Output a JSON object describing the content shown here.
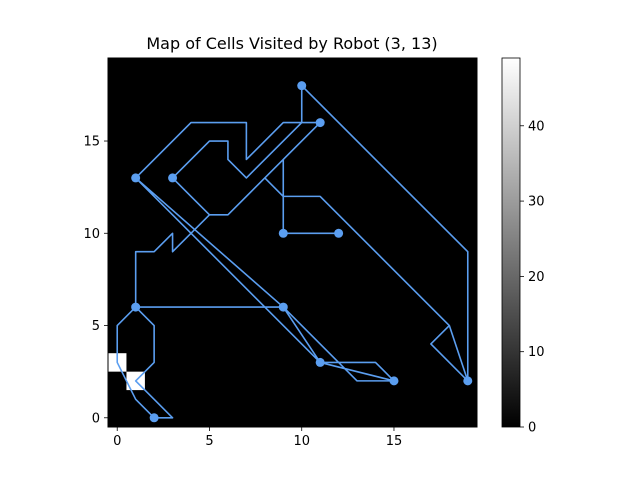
{
  "chart_data": {
    "type": "heatmap",
    "title": "Map of Cells Visited by Robot (3, 13)",
    "xlabel": "",
    "ylabel": "",
    "xlim": [
      -0.5,
      19.5
    ],
    "ylim": [
      -0.5,
      19.5
    ],
    "x_ticks": [
      0,
      5,
      10,
      15
    ],
    "y_ticks": [
      0,
      5,
      10,
      15
    ],
    "grid_size": [
      20,
      20
    ],
    "background_value": 0,
    "colormap": "gray",
    "colorbar": {
      "min": 0,
      "max": 49,
      "ticks": [
        0,
        10,
        20,
        30,
        40
      ]
    },
    "bright_cells": [
      {
        "x": 0,
        "y": 3,
        "value": 49
      },
      {
        "x": 1,
        "y": 2,
        "value": 49
      }
    ],
    "path_color": "#5b9ef0",
    "path": [
      [
        2,
        0
      ],
      [
        1,
        1
      ],
      [
        0,
        3
      ],
      [
        0,
        5
      ],
      [
        1,
        6
      ],
      [
        2,
        5
      ],
      [
        2,
        3
      ],
      [
        1,
        2
      ],
      [
        2,
        1
      ],
      [
        3,
        0
      ],
      [
        2,
        0
      ],
      [
        1,
        1
      ],
      [
        0,
        3
      ],
      [
        0,
        5
      ],
      [
        1,
        6
      ],
      [
        9,
        6
      ],
      [
        13,
        2
      ],
      [
        15,
        2
      ],
      [
        14,
        3
      ],
      [
        11,
        3
      ],
      [
        1,
        13
      ],
      [
        4,
        16
      ],
      [
        7,
        16
      ],
      [
        7,
        14
      ],
      [
        9,
        16
      ],
      [
        11,
        16
      ],
      [
        7,
        12
      ],
      [
        6,
        11
      ],
      [
        5,
        11
      ],
      [
        3,
        9
      ],
      [
        3,
        10
      ],
      [
        2,
        9
      ],
      [
        1,
        9
      ],
      [
        1,
        6
      ],
      [
        9,
        6
      ],
      [
        11,
        3
      ],
      [
        15,
        2
      ],
      [
        13,
        2
      ],
      [
        9,
        6
      ],
      [
        1,
        13
      ],
      [
        4,
        16
      ],
      [
        7,
        16
      ],
      [
        7,
        14
      ],
      [
        9,
        16
      ],
      [
        11,
        16
      ],
      [
        9,
        14
      ],
      [
        9,
        10
      ],
      [
        12,
        10
      ],
      [
        9,
        10
      ],
      [
        9,
        12
      ],
      [
        11,
        12
      ],
      [
        18,
        5
      ],
      [
        19,
        2
      ],
      [
        17,
        4
      ],
      [
        18,
        5
      ],
      [
        11,
        12
      ],
      [
        9,
        12
      ],
      [
        8,
        13
      ],
      [
        6,
        11
      ],
      [
        5,
        11
      ],
      [
        4,
        12
      ],
      [
        3,
        13
      ],
      [
        5,
        15
      ],
      [
        6,
        15
      ],
      [
        6,
        14
      ],
      [
        7,
        13
      ],
      [
        10,
        16
      ],
      [
        10,
        18
      ],
      [
        19,
        9
      ],
      [
        19,
        2
      ]
    ],
    "visited_markers": [
      [
        3,
        13
      ],
      [
        1,
        13
      ],
      [
        11,
        16
      ],
      [
        10,
        18
      ],
      [
        9,
        10
      ],
      [
        12,
        10
      ],
      [
        1,
        6
      ],
      [
        9,
        6
      ],
      [
        11,
        3
      ],
      [
        15,
        2
      ],
      [
        19,
        2
      ],
      [
        2,
        0
      ]
    ]
  }
}
